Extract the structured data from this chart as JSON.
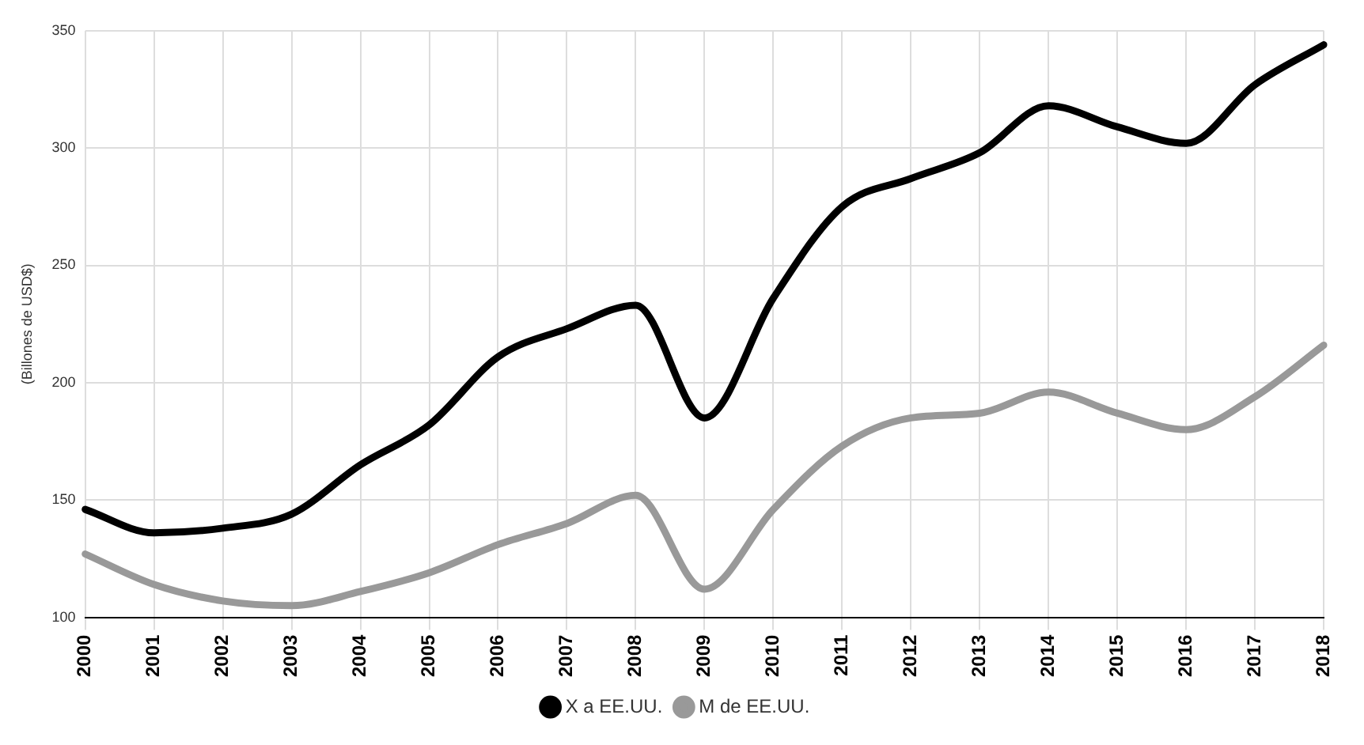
{
  "chart_data": {
    "type": "line",
    "ylabel": "(Billones de USD$)",
    "categories": [
      "2000",
      "2001",
      "2002",
      "2003",
      "2004",
      "2005",
      "2006",
      "2007",
      "2008",
      "2009",
      "2010",
      "2011",
      "2012",
      "2013",
      "2014",
      "2015",
      "2016",
      "2017",
      "2018"
    ],
    "series": [
      {
        "name": "X a EE.UU.",
        "color": "#000000",
        "values": [
          146,
          136,
          138,
          144,
          165,
          182,
          211,
          223,
          233,
          185,
          236,
          275,
          287,
          298,
          318,
          309,
          302,
          327,
          344
        ]
      },
      {
        "name": "M de EE.UU.",
        "color": "#999999",
        "values": [
          127,
          114,
          107,
          105,
          111,
          119,
          131,
          140,
          152,
          112,
          146,
          173,
          185,
          187,
          196,
          187,
          180,
          194,
          216
        ]
      }
    ],
    "ylim": [
      100,
      350
    ],
    "yticks": [
      100,
      150,
      200,
      250,
      300,
      350
    ],
    "grid": true,
    "legend": "bottom",
    "marker": "none",
    "line_style": "solid"
  }
}
